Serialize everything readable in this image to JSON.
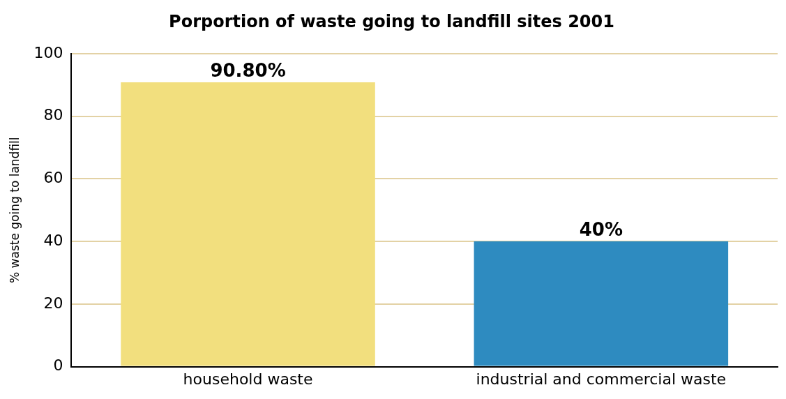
{
  "chart_data": {
    "type": "bar",
    "title": "Porportion of waste going to landfill sites 2001",
    "ylabel": "% waste going to landfill",
    "categories": [
      "household waste",
      "industrial and commercial waste"
    ],
    "values": [
      90.8,
      40
    ],
    "colors": [
      "#f2df7e",
      "#2e8bc0"
    ],
    "value_labels": [
      "90.80%",
      "40%"
    ],
    "ylim": [
      0,
      100
    ],
    "yticks": [
      0,
      20,
      40,
      60,
      80,
      100
    ],
    "grid": "y",
    "legend": false
  }
}
